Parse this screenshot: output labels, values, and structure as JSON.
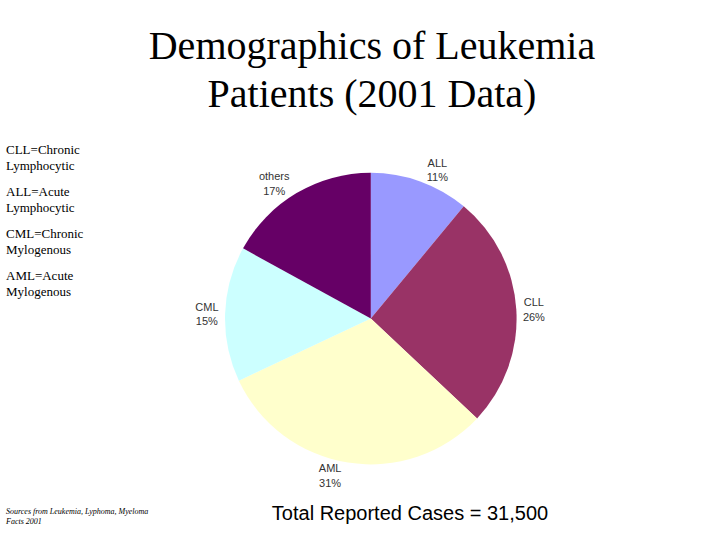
{
  "chart_data": {
    "type": "pie",
    "title": "Demographics of Leukemia Patients (2001 Data)",
    "categories": [
      "ALL",
      "CLL",
      "AML",
      "CML",
      "others"
    ],
    "values": [
      11,
      26,
      31,
      15,
      17
    ],
    "value_labels": [
      "11%",
      "26%",
      "31%",
      "15%",
      "17%"
    ],
    "colors": [
      "#9999ff",
      "#993366",
      "#ffffcc",
      "#ccffff",
      "#660066"
    ],
    "data_labels": true,
    "annotations": [
      "CLL=Chronic Lymphocytic",
      "ALL=Acute Lymphocytic",
      "CML=Chronic Mylogenous",
      "AML=Acute Mylogenous"
    ],
    "source": "Sources from Leukemia, Lyphoma, Myeloma Facts 2001",
    "footnote": "Total Reported Cases = 31,500"
  }
}
